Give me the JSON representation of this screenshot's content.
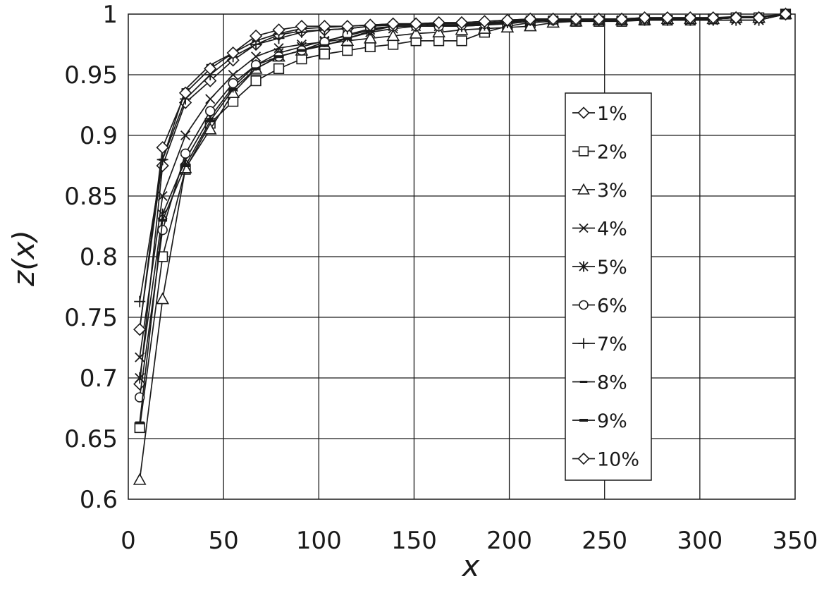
{
  "chart_data": {
    "type": "line",
    "xlabel": "x",
    "ylabel": "z(x)",
    "xlim": [
      0,
      350
    ],
    "ylim": [
      0.6,
      1.0
    ],
    "xticks": [
      "0",
      "50",
      "100",
      "150",
      "200",
      "250",
      "300",
      "350"
    ],
    "yticks": [
      "0.6",
      "0.65",
      "0.7",
      "0.75",
      "0.8",
      "0.85",
      "0.9",
      "0.95",
      "1"
    ],
    "grid": true,
    "legend_position": "right",
    "series_color": "#1a1a1a",
    "series": [
      {
        "name": "1%",
        "marker": "diamond",
        "x": [
          6,
          18,
          30,
          43,
          55,
          67,
          79,
          91,
          103,
          115,
          127,
          139,
          151,
          163,
          175,
          187,
          199,
          211,
          223,
          235,
          247,
          259,
          271,
          283,
          295,
          307,
          319,
          331,
          345
        ],
        "y": [
          0.695,
          0.875,
          0.927,
          0.945,
          0.962,
          0.975,
          0.983,
          0.986,
          0.987,
          0.988,
          0.99,
          0.991,
          0.992,
          0.992,
          0.992,
          0.992,
          0.993,
          0.995,
          0.995,
          0.995,
          0.995,
          0.995,
          0.996,
          0.996,
          0.996,
          0.996,
          0.997,
          0.997,
          1.0
        ]
      },
      {
        "name": "2%",
        "marker": "square",
        "x": [
          6,
          18,
          30,
          43,
          55,
          67,
          79,
          91,
          103,
          115,
          127,
          139,
          151,
          163,
          175,
          187,
          199,
          211,
          223,
          235,
          247,
          259,
          271,
          283,
          295,
          307,
          319,
          331,
          345
        ],
        "y": [
          0.659,
          0.8,
          0.872,
          0.91,
          0.928,
          0.945,
          0.955,
          0.963,
          0.967,
          0.97,
          0.973,
          0.975,
          0.978,
          0.978,
          0.978,
          0.985,
          0.99,
          0.993,
          0.994,
          0.994,
          0.994,
          0.994,
          0.995,
          0.995,
          0.995,
          0.996,
          0.997,
          0.997,
          1.0
        ]
      },
      {
        "name": "3%",
        "marker": "triangle",
        "x": [
          6,
          18,
          30,
          43,
          55,
          67,
          79,
          91,
          103,
          115,
          127,
          139,
          151,
          163,
          175,
          187,
          199,
          211,
          223,
          235,
          247,
          259,
          271,
          283,
          295,
          307,
          319,
          331,
          345
        ],
        "y": [
          0.616,
          0.765,
          0.873,
          0.905,
          0.935,
          0.955,
          0.965,
          0.97,
          0.975,
          0.978,
          0.98,
          0.982,
          0.984,
          0.985,
          0.987,
          0.988,
          0.989,
          0.99,
          0.993,
          0.994,
          0.995,
          0.995,
          0.995,
          0.996,
          0.996,
          0.996,
          0.997,
          0.997,
          1.0
        ]
      },
      {
        "name": "4%",
        "marker": "x",
        "x": [
          6,
          18,
          30,
          43,
          55,
          67,
          79,
          91,
          103,
          115,
          127,
          139,
          151,
          163,
          175,
          187,
          199,
          211,
          223,
          235,
          247,
          259,
          271,
          283,
          295,
          307,
          319,
          331,
          345
        ],
        "y": [
          0.717,
          0.85,
          0.9,
          0.93,
          0.95,
          0.965,
          0.972,
          0.975,
          0.977,
          0.98,
          0.985,
          0.988,
          0.99,
          0.99,
          0.99,
          0.991,
          0.992,
          0.994,
          0.995,
          0.995,
          0.995,
          0.995,
          0.995,
          0.995,
          0.995,
          0.995,
          0.995,
          0.995,
          1.0
        ]
      },
      {
        "name": "5%",
        "marker": "star",
        "x": [
          6,
          18,
          30,
          43,
          55,
          67,
          79,
          91,
          103,
          115,
          127,
          139,
          151,
          163,
          175,
          187,
          199,
          211,
          223,
          235,
          247,
          259,
          271,
          283,
          295,
          307,
          319,
          331,
          345
        ],
        "y": [
          0.7,
          0.835,
          0.88,
          0.915,
          0.94,
          0.958,
          0.968,
          0.973,
          0.978,
          0.982,
          0.987,
          0.99,
          0.99,
          0.99,
          0.99,
          0.991,
          0.993,
          0.995,
          0.995,
          0.995,
          0.995,
          0.995,
          0.995,
          0.995,
          0.995,
          0.995,
          0.995,
          0.995,
          1.0
        ]
      },
      {
        "name": "6%",
        "marker": "circle",
        "x": [
          6,
          18,
          30,
          43,
          55,
          67,
          79,
          91,
          103,
          115,
          127,
          139,
          151,
          163,
          175,
          187,
          199,
          211,
          223,
          235,
          247,
          259,
          271,
          283,
          295,
          307,
          319,
          331,
          345
        ],
        "y": [
          0.684,
          0.822,
          0.885,
          0.92,
          0.943,
          0.958,
          0.965,
          0.97,
          0.977,
          0.983,
          0.988,
          0.99,
          0.99,
          0.99,
          0.991,
          0.992,
          0.994,
          0.995,
          0.995,
          0.995,
          0.995,
          0.995,
          0.996,
          0.996,
          0.996,
          0.996,
          0.997,
          0.997,
          1.0
        ]
      },
      {
        "name": "7%",
        "marker": "plus",
        "x": [
          6,
          18,
          30,
          43,
          55,
          67,
          79,
          91,
          103,
          115,
          127,
          139,
          151,
          163,
          175,
          187,
          199,
          211,
          223,
          235,
          247,
          259,
          271,
          283,
          295,
          307,
          319,
          331,
          345
        ],
        "y": [
          0.763,
          0.88,
          0.93,
          0.95,
          0.965,
          0.975,
          0.98,
          0.985,
          0.987,
          0.988,
          0.99,
          0.991,
          0.991,
          0.992,
          0.992,
          0.993,
          0.994,
          0.995,
          0.995,
          0.995,
          0.996,
          0.996,
          0.996,
          0.996,
          0.996,
          0.996,
          0.997,
          0.997,
          1.0
        ]
      },
      {
        "name": "8%",
        "marker": "dash",
        "x": [
          6,
          18,
          30,
          43,
          55,
          67,
          79,
          91,
          103,
          115,
          127,
          139,
          151,
          163,
          175,
          187,
          199,
          211,
          223,
          235,
          247,
          259,
          271,
          283,
          295,
          307,
          319,
          331,
          345
        ],
        "y": [
          0.741,
          0.88,
          0.938,
          0.958,
          0.968,
          0.978,
          0.984,
          0.988,
          0.989,
          0.99,
          0.991,
          0.992,
          0.992,
          0.993,
          0.993,
          0.994,
          0.995,
          0.996,
          0.996,
          0.996,
          0.996,
          0.996,
          0.997,
          0.997,
          0.997,
          0.997,
          0.998,
          0.998,
          1.0
        ]
      },
      {
        "name": "9%",
        "marker": "bar",
        "x": [
          6,
          18,
          30,
          43,
          55,
          67,
          79,
          91,
          103,
          115,
          127,
          139,
          151,
          163,
          175,
          187,
          199,
          211,
          223,
          235,
          247,
          259,
          271,
          283,
          295,
          307,
          319,
          331,
          345
        ],
        "y": [
          0.663,
          0.83,
          0.875,
          0.912,
          0.938,
          0.955,
          0.965,
          0.97,
          0.974,
          0.98,
          0.986,
          0.99,
          0.99,
          0.991,
          0.991,
          0.992,
          0.994,
          0.995,
          0.995,
          0.995,
          0.995,
          0.996,
          0.996,
          0.996,
          0.996,
          0.996,
          0.997,
          0.997,
          1.0
        ]
      },
      {
        "name": "10%",
        "marker": "diamond",
        "x": [
          6,
          18,
          30,
          43,
          55,
          67,
          79,
          91,
          103,
          115,
          127,
          139,
          151,
          163,
          175,
          187,
          199,
          211,
          223,
          235,
          247,
          259,
          271,
          283,
          295,
          307,
          319,
          331,
          345
        ],
        "y": [
          0.74,
          0.89,
          0.935,
          0.955,
          0.968,
          0.982,
          0.987,
          0.99,
          0.99,
          0.99,
          0.991,
          0.992,
          0.992,
          0.993,
          0.993,
          0.994,
          0.995,
          0.996,
          0.996,
          0.996,
          0.996,
          0.996,
          0.997,
          0.997,
          0.997,
          0.997,
          0.997,
          0.997,
          1.0
        ]
      }
    ]
  }
}
